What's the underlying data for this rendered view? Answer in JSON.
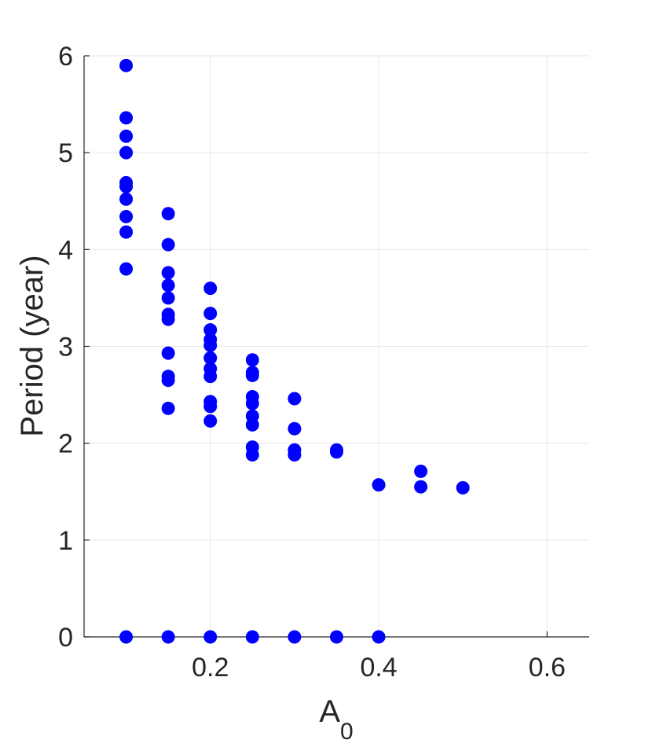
{
  "chart_data": {
    "type": "scatter",
    "title": "",
    "xlabel": "A",
    "xlabel_subscript": "0",
    "ylabel": "Period (year)",
    "xlim": [
      0.05,
      0.65
    ],
    "ylim": [
      0,
      6
    ],
    "xticks": [
      0.2,
      0.4,
      0.6
    ],
    "xtick_labels": [
      "0.2",
      "0.4",
      "0.6"
    ],
    "yticks": [
      0,
      1,
      2,
      3,
      4,
      5,
      6
    ],
    "ytick_labels": [
      "0",
      "1",
      "2",
      "3",
      "4",
      "5",
      "6"
    ],
    "grid": true,
    "marker_color": "#0000ff",
    "series": [
      {
        "points": [
          [
            0.1,
            5.9
          ],
          [
            0.1,
            5.36
          ],
          [
            0.1,
            5.17
          ],
          [
            0.1,
            5.0
          ],
          [
            0.1,
            4.69
          ],
          [
            0.1,
            4.65
          ],
          [
            0.1,
            4.52
          ],
          [
            0.1,
            4.34
          ],
          [
            0.1,
            4.18
          ],
          [
            0.1,
            3.8
          ],
          [
            0.1,
            0
          ],
          [
            0.15,
            4.37
          ],
          [
            0.15,
            4.05
          ],
          [
            0.15,
            3.76
          ],
          [
            0.15,
            3.63
          ],
          [
            0.15,
            3.5
          ],
          [
            0.15,
            3.33
          ],
          [
            0.15,
            3.28
          ],
          [
            0.15,
            2.93
          ],
          [
            0.15,
            2.69
          ],
          [
            0.15,
            2.65
          ],
          [
            0.15,
            2.36
          ],
          [
            0.15,
            0
          ],
          [
            0.2,
            3.6
          ],
          [
            0.2,
            3.34
          ],
          [
            0.2,
            3.17
          ],
          [
            0.2,
            3.07
          ],
          [
            0.2,
            3.01
          ],
          [
            0.2,
            2.88
          ],
          [
            0.2,
            2.77
          ],
          [
            0.2,
            2.69
          ],
          [
            0.2,
            2.43
          ],
          [
            0.2,
            2.38
          ],
          [
            0.2,
            2.23
          ],
          [
            0.2,
            0
          ],
          [
            0.25,
            2.86
          ],
          [
            0.25,
            2.73
          ],
          [
            0.25,
            2.7
          ],
          [
            0.25,
            2.48
          ],
          [
            0.25,
            2.41
          ],
          [
            0.25,
            2.28
          ],
          [
            0.25,
            2.19
          ],
          [
            0.25,
            1.96
          ],
          [
            0.25,
            1.88
          ],
          [
            0.25,
            0
          ],
          [
            0.3,
            2.46
          ],
          [
            0.3,
            2.15
          ],
          [
            0.3,
            1.93
          ],
          [
            0.3,
            1.88
          ],
          [
            0.3,
            0
          ],
          [
            0.35,
            1.93
          ],
          [
            0.35,
            1.91
          ],
          [
            0.35,
            0
          ],
          [
            0.4,
            1.57
          ],
          [
            0.4,
            0
          ],
          [
            0.45,
            1.71
          ],
          [
            0.45,
            1.55
          ],
          [
            0.5,
            1.54
          ]
        ]
      }
    ]
  }
}
